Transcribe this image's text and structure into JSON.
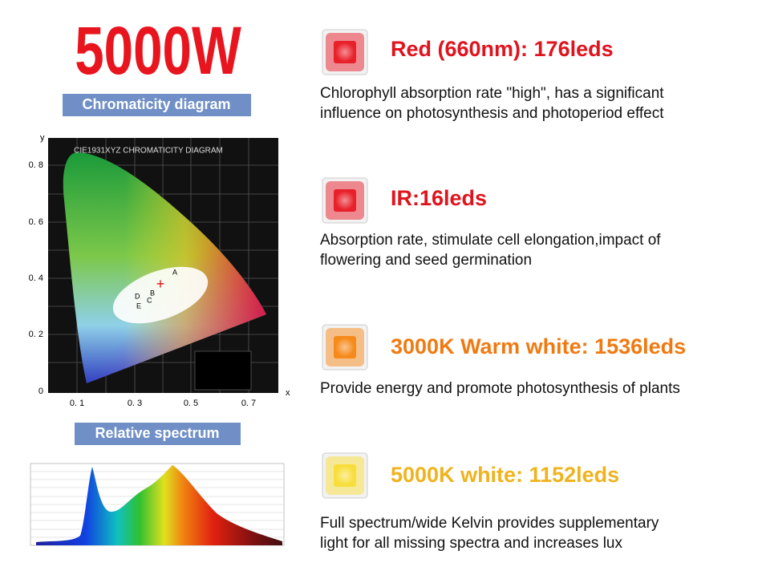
{
  "header": {
    "title": "5000W"
  },
  "left": {
    "chromaticity_label": "Chromaticity diagram",
    "diagram": {
      "title": "CIE1931XYZ CHROMATICITY DIAGRAM",
      "y_axis": "y",
      "x_axis": "x",
      "y_ticks": [
        "0. 8",
        "0. 6",
        "0. 4",
        "0. 2",
        "0"
      ],
      "x_ticks": [
        "0. 1",
        "0. 3",
        "0. 5",
        "0. 7"
      ],
      "points": [
        "A",
        "B",
        "C",
        "D",
        "E"
      ]
    },
    "spectrum_label": "Relative spectrum"
  },
  "items": [
    {
      "title": "Red (660nm): 176leds",
      "color": "#e0141e",
      "led": "#e8202a",
      "description": [
        "Chlorophyll absorption rate \"high\", has a significant",
        "influence on photosynthesis and photoperiod effect"
      ]
    },
    {
      "title": "IR:16leds",
      "color": "#e0141e",
      "led": "#e8202a",
      "description": [
        "Absorption rate, stimulate cell elongation,impact of",
        "flowering and seed germination"
      ]
    },
    {
      "title": "3000K Warm white: 1536leds",
      "color": "#f07a12",
      "led": "#f58a1a",
      "description": [
        "Provide energy and promote photosynthesis of plants"
      ]
    },
    {
      "title": "5000K white: 1152leds",
      "color": "#f0b31e",
      "led": "#f8de3a",
      "description": [
        "Full spectrum/wide Kelvin provides supplementary",
        "light for all missing spectra and increases lux"
      ]
    }
  ]
}
